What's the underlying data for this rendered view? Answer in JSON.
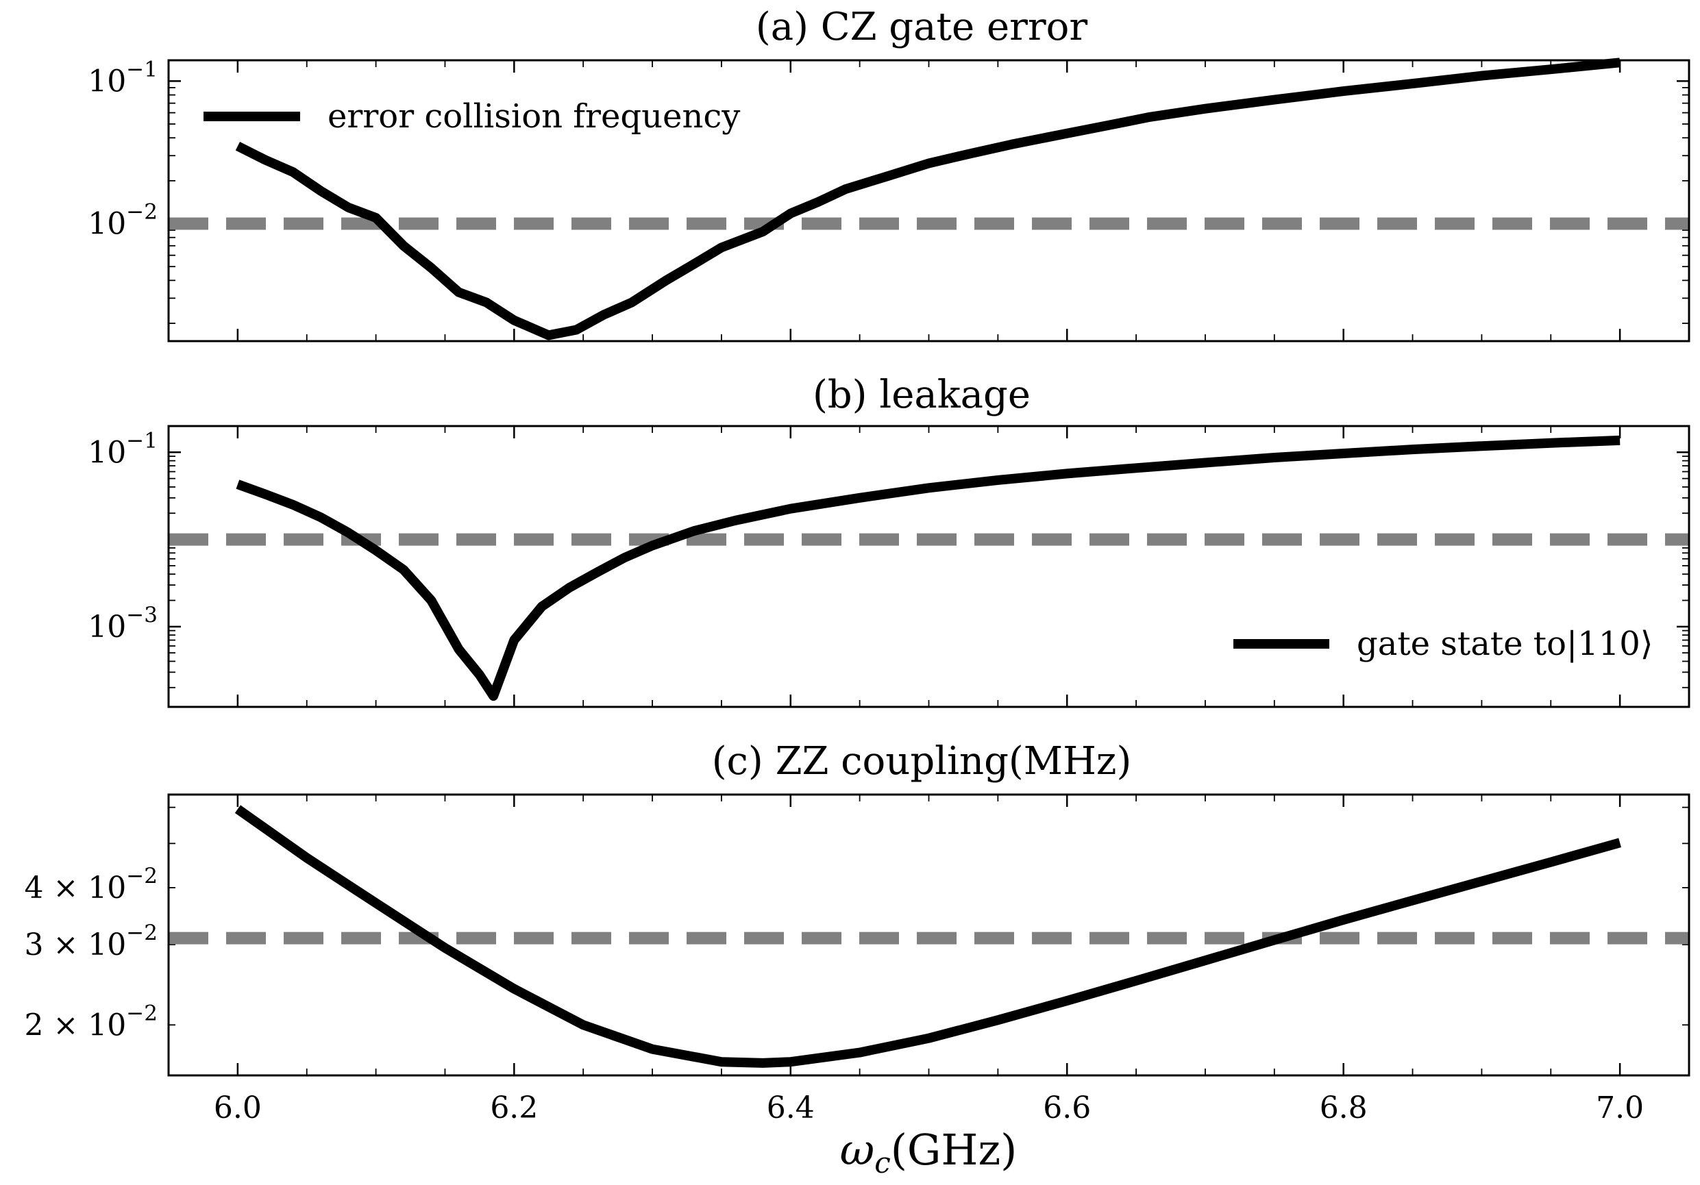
{
  "chart_data": [
    {
      "type": "line",
      "title": "(a) CZ gate error",
      "xlabel": "",
      "ylabel": "",
      "yscale": "log",
      "xlim": [
        5.95,
        7.05
      ],
      "ylim": [
        0.0015,
        0.14
      ],
      "yticks": [
        {
          "value": 0.1,
          "mantissa": "10",
          "exp": "−1"
        },
        {
          "value": 0.01,
          "mantissa": "10",
          "exp": "−2"
        }
      ],
      "legend": {
        "placement": "upper-left",
        "entries": [
          "error collision frequency"
        ]
      },
      "threshold": 0.01,
      "series": [
        {
          "name": "error collision frequency",
          "color": "#000000",
          "x": [
            6.0,
            6.02,
            6.04,
            6.06,
            6.08,
            6.1,
            6.12,
            6.14,
            6.16,
            6.18,
            6.2,
            6.225,
            6.245,
            6.265,
            6.285,
            6.31,
            6.33,
            6.35,
            6.38,
            6.4,
            6.42,
            6.44,
            6.47,
            6.5,
            6.53,
            6.56,
            6.6,
            6.63,
            6.66,
            6.7,
            6.75,
            6.8,
            6.85,
            6.9,
            6.95,
            7.0
          ],
          "y": [
            0.035,
            0.028,
            0.023,
            0.017,
            0.013,
            0.011,
            0.007,
            0.0049,
            0.0033,
            0.0028,
            0.0021,
            0.00165,
            0.0018,
            0.0023,
            0.0028,
            0.004,
            0.0052,
            0.0068,
            0.0088,
            0.0118,
            0.0142,
            0.0175,
            0.0215,
            0.0265,
            0.031,
            0.036,
            0.043,
            0.049,
            0.056,
            0.064,
            0.074,
            0.085,
            0.096,
            0.109,
            0.121,
            0.135
          ]
        }
      ]
    },
    {
      "type": "line",
      "title": "(b) leakage",
      "xlabel": "",
      "ylabel": "",
      "yscale": "log",
      "xlim": [
        5.95,
        7.05
      ],
      "ylim": [
        0.00012,
        0.2
      ],
      "yticks": [
        {
          "value": 0.1,
          "mantissa": "10",
          "exp": "−1"
        },
        {
          "value": 0.001,
          "mantissa": "10",
          "exp": "−3"
        }
      ],
      "legend": {
        "placement": "lower-right",
        "entries": [
          "gate state to|110⟩"
        ]
      },
      "threshold": 0.01,
      "series": [
        {
          "name": "gate state to|110⟩",
          "color": "#000000",
          "x": [
            6.0,
            6.02,
            6.04,
            6.06,
            6.08,
            6.1,
            6.12,
            6.14,
            6.16,
            6.175,
            6.185,
            6.2,
            6.22,
            6.24,
            6.26,
            6.28,
            6.3,
            6.33,
            6.36,
            6.4,
            6.45,
            6.5,
            6.55,
            6.6,
            6.65,
            6.7,
            6.75,
            6.8,
            6.85,
            6.9,
            6.95,
            7.0
          ],
          "y": [
            0.043,
            0.033,
            0.025,
            0.018,
            0.012,
            0.0075,
            0.0045,
            0.002,
            0.00055,
            0.00028,
            0.00016,
            0.0007,
            0.0017,
            0.0028,
            0.0042,
            0.0062,
            0.0085,
            0.0125,
            0.0165,
            0.0225,
            0.03,
            0.039,
            0.048,
            0.057,
            0.066,
            0.076,
            0.087,
            0.097,
            0.108,
            0.118,
            0.128,
            0.137
          ]
        }
      ]
    },
    {
      "type": "line",
      "title": "(c) ZZ coupling(MHz)",
      "xlabel": "ω_c(GHz)",
      "ylabel": "",
      "yscale": "log",
      "xlim": [
        5.95,
        7.05
      ],
      "ylim": [
        0.0155,
        0.064
      ],
      "yticks": [
        {
          "value": 0.04,
          "mantissa": "4 × 10",
          "exp": "−2"
        },
        {
          "value": 0.03,
          "mantissa": "3 × 10",
          "exp": "−2"
        },
        {
          "value": 0.02,
          "mantissa": "2 × 10",
          "exp": "−2"
        }
      ],
      "xticks": [
        {
          "value": 6.0,
          "label": "6.0"
        },
        {
          "value": 6.2,
          "label": "6.2"
        },
        {
          "value": 6.4,
          "label": "6.4"
        },
        {
          "value": 6.6,
          "label": "6.6"
        },
        {
          "value": 6.8,
          "label": "6.8"
        },
        {
          "value": 7.0,
          "label": "7.0"
        }
      ],
      "threshold": 0.031,
      "series": [
        {
          "name": "",
          "color": "#000000",
          "x": [
            6.0,
            6.05,
            6.1,
            6.15,
            6.2,
            6.25,
            6.3,
            6.35,
            6.38,
            6.4,
            6.45,
            6.5,
            6.55,
            6.6,
            6.65,
            6.7,
            6.75,
            6.8,
            6.85,
            6.9,
            6.95,
            7.0
          ],
          "y": [
            0.0595,
            0.0465,
            0.037,
            0.0295,
            0.024,
            0.02,
            0.0177,
            0.0166,
            0.0165,
            0.0166,
            0.0174,
            0.0187,
            0.0205,
            0.0226,
            0.025,
            0.0277,
            0.0307,
            0.034,
            0.0375,
            0.0413,
            0.0455,
            0.0502
          ]
        }
      ]
    }
  ],
  "colors": {
    "line": "#000000",
    "threshold": "#808080",
    "axes": "#000000"
  },
  "threshold_style": "dashed"
}
